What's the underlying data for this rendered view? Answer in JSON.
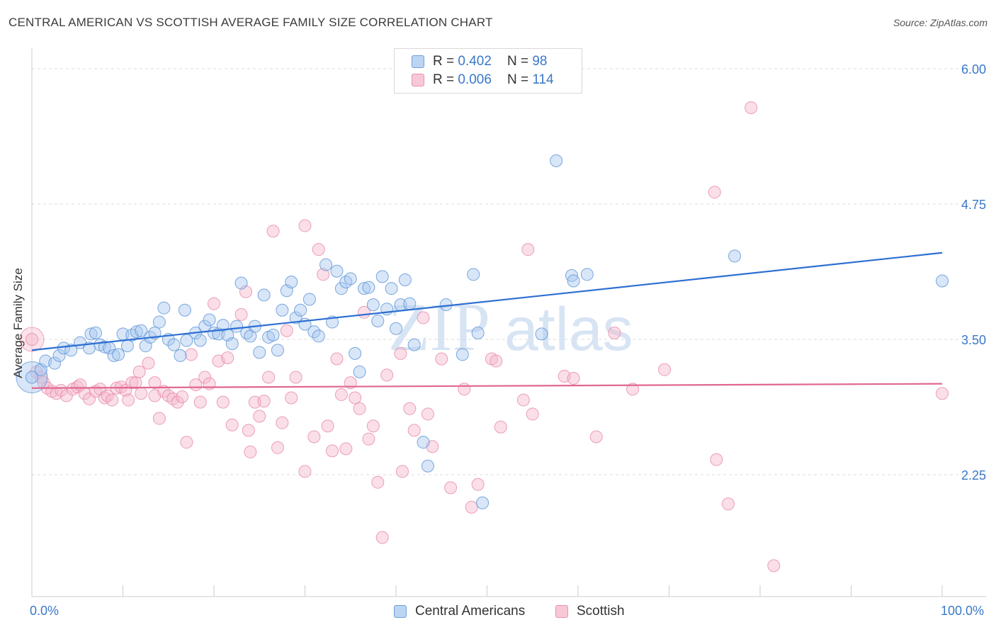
{
  "title": "CENTRAL AMERICAN VS SCOTTISH AVERAGE FAMILY SIZE CORRELATION CHART",
  "source": "Source: ZipAtlas.com",
  "watermark": {
    "zip": "ZIP",
    "atlas": "atlas"
  },
  "legend": {
    "rows": [
      {
        "r_label": "R =",
        "r_value": "0.402",
        "n_label": "N =",
        "n_value": "98"
      },
      {
        "r_label": "R =",
        "r_value": "0.006",
        "n_label": "N =",
        "n_value": "114"
      }
    ]
  },
  "colors": {
    "blue_fill": "#a8c8ef",
    "blue_stroke": "#5b93d6",
    "blue_line": "#2d6fd2",
    "pink_fill": "#f5b8cb",
    "pink_stroke": "#e888a8",
    "pink_line": "#e0688e",
    "grid": "#dddddd",
    "axis_label": "#3a78c9"
  },
  "chart_data": {
    "type": "scatter",
    "title": "CENTRAL AMERICAN VS SCOTTISH AVERAGE FAMILY SIZE CORRELATION CHART",
    "xlabel": "",
    "ylabel": "Average Family Size",
    "xlim": [
      0,
      100
    ],
    "ylim": [
      1.05,
      6.1
    ],
    "x_tick_labels": [
      "0.0%",
      "100.0%"
    ],
    "y_ticks": [
      2.25,
      3.5,
      4.75,
      6.0
    ],
    "y_tick_labels": [
      "2.25",
      "3.50",
      "4.75",
      "6.00"
    ],
    "grid": true,
    "legend_position": "top-center",
    "series": [
      {
        "name": "Central Americans",
        "color": "#a8c8ef",
        "r": 0.402,
        "n": 98,
        "trend": {
          "x": [
            0,
            100
          ],
          "y": [
            3.4,
            4.3
          ]
        },
        "points": [
          [
            0,
            3.15
          ],
          [
            1,
            3.22
          ],
          [
            1.5,
            3.3
          ],
          [
            2.5,
            3.28
          ],
          [
            3,
            3.35
          ],
          [
            3.5,
            3.42
          ],
          [
            4.3,
            3.4
          ],
          [
            5.3,
            3.47
          ],
          [
            6.3,
            3.42
          ],
          [
            6.5,
            3.55
          ],
          [
            7,
            3.56
          ],
          [
            7.5,
            3.45
          ],
          [
            8,
            3.43
          ],
          [
            8.5,
            3.42
          ],
          [
            9,
            3.35
          ],
          [
            9.5,
            3.36
          ],
          [
            10,
            3.55
          ],
          [
            10.5,
            3.44
          ],
          [
            11,
            3.54
          ],
          [
            11.5,
            3.57
          ],
          [
            12,
            3.58
          ],
          [
            12.5,
            3.44
          ],
          [
            13,
            3.52
          ],
          [
            13.5,
            3.56
          ],
          [
            14,
            3.66
          ],
          [
            14.5,
            3.79
          ],
          [
            15,
            3.5
          ],
          [
            15.6,
            3.45
          ],
          [
            16.3,
            3.35
          ],
          [
            16.8,
            3.77
          ],
          [
            17,
            3.49
          ],
          [
            18,
            3.56
          ],
          [
            18.5,
            3.49
          ],
          [
            19,
            3.62
          ],
          [
            19.5,
            3.68
          ],
          [
            20,
            3.56
          ],
          [
            20.5,
            3.55
          ],
          [
            21,
            3.63
          ],
          [
            21.5,
            3.54
          ],
          [
            22,
            3.46
          ],
          [
            22.5,
            3.62
          ],
          [
            23,
            4.02
          ],
          [
            23.6,
            3.56
          ],
          [
            24,
            3.53
          ],
          [
            24.5,
            3.62
          ],
          [
            25,
            3.38
          ],
          [
            25.5,
            3.91
          ],
          [
            26,
            3.52
          ],
          [
            26.5,
            3.54
          ],
          [
            27,
            3.4
          ],
          [
            27.5,
            3.77
          ],
          [
            28,
            3.95
          ],
          [
            28.5,
            4.03
          ],
          [
            29,
            3.7
          ],
          [
            29.5,
            3.77
          ],
          [
            30,
            3.64
          ],
          [
            30.5,
            3.87
          ],
          [
            31,
            3.57
          ],
          [
            31.5,
            3.53
          ],
          [
            32.3,
            4.19
          ],
          [
            33,
            3.66
          ],
          [
            33.5,
            4.13
          ],
          [
            34,
            3.97
          ],
          [
            34.5,
            4.03
          ],
          [
            35,
            4.06
          ],
          [
            35.5,
            3.37
          ],
          [
            36,
            3.2
          ],
          [
            36.5,
            3.97
          ],
          [
            37,
            3.98
          ],
          [
            37.5,
            3.82
          ],
          [
            38,
            3.67
          ],
          [
            38.5,
            4.08
          ],
          [
            39,
            3.78
          ],
          [
            39.5,
            3.97
          ],
          [
            40,
            3.6
          ],
          [
            40.5,
            3.82
          ],
          [
            41,
            4.05
          ],
          [
            41.5,
            3.83
          ],
          [
            42,
            3.45
          ],
          [
            43,
            2.55
          ],
          [
            43.5,
            2.33
          ],
          [
            45.5,
            3.82
          ],
          [
            47.3,
            3.36
          ],
          [
            48.5,
            4.1
          ],
          [
            49,
            3.56
          ],
          [
            49.5,
            1.99
          ],
          [
            56,
            3.55
          ],
          [
            57.6,
            5.15
          ],
          [
            59.3,
            4.09
          ],
          [
            59.5,
            4.04
          ],
          [
            61,
            4.1
          ],
          [
            77.2,
            4.27
          ],
          [
            100,
            4.04
          ]
        ]
      },
      {
        "name": "Scottish",
        "color": "#f5b8cb",
        "r": 0.006,
        "n": 114,
        "trend": {
          "x": [
            0,
            100
          ],
          "y": [
            3.05,
            3.09
          ]
        },
        "points": [
          [
            0,
            3.5
          ],
          [
            0.5,
            3.2
          ],
          [
            1,
            3.15
          ],
          [
            1.3,
            3.1
          ],
          [
            1.7,
            3.05
          ],
          [
            2.2,
            3.02
          ],
          [
            2.7,
            3.0
          ],
          [
            3.2,
            3.03
          ],
          [
            3.8,
            2.98
          ],
          [
            4.5,
            3.04
          ],
          [
            5,
            3.06
          ],
          [
            5.3,
            3.08
          ],
          [
            5.8,
            3.0
          ],
          [
            6.3,
            2.95
          ],
          [
            7,
            3.02
          ],
          [
            7.5,
            3.04
          ],
          [
            8,
            2.96
          ],
          [
            8.3,
            2.98
          ],
          [
            8.8,
            2.94
          ],
          [
            9.3,
            3.05
          ],
          [
            9.8,
            3.06
          ],
          [
            10.3,
            3.03
          ],
          [
            10.6,
            2.94
          ],
          [
            11,
            3.1
          ],
          [
            11.4,
            3.1
          ],
          [
            11.8,
            3.2
          ],
          [
            12,
            3.0
          ],
          [
            12.8,
            3.28
          ],
          [
            13.5,
            2.98
          ],
          [
            13.5,
            3.1
          ],
          [
            14,
            2.77
          ],
          [
            14.5,
            3.02
          ],
          [
            15,
            2.98
          ],
          [
            15.5,
            2.95
          ],
          [
            16,
            2.92
          ],
          [
            16.5,
            2.97
          ],
          [
            17,
            2.55
          ],
          [
            17.5,
            3.36
          ],
          [
            18,
            3.08
          ],
          [
            18.5,
            2.92
          ],
          [
            19,
            3.15
          ],
          [
            19.5,
            3.09
          ],
          [
            20,
            3.83
          ],
          [
            20.5,
            3.3
          ],
          [
            21,
            2.92
          ],
          [
            21.5,
            3.33
          ],
          [
            22,
            2.71
          ],
          [
            23,
            3.73
          ],
          [
            23.5,
            3.94
          ],
          [
            23.8,
            2.66
          ],
          [
            24,
            2.46
          ],
          [
            24.5,
            2.92
          ],
          [
            25,
            2.79
          ],
          [
            25.5,
            2.93
          ],
          [
            26,
            3.15
          ],
          [
            26.5,
            4.5
          ],
          [
            27,
            2.5
          ],
          [
            27.5,
            2.73
          ],
          [
            28,
            3.58
          ],
          [
            28.5,
            2.96
          ],
          [
            29,
            3.15
          ],
          [
            30,
            2.28
          ],
          [
            30,
            4.55
          ],
          [
            31,
            2.6
          ],
          [
            31.5,
            4.33
          ],
          [
            32,
            4.1
          ],
          [
            32.5,
            2.7
          ],
          [
            33,
            2.47
          ],
          [
            33.5,
            3.32
          ],
          [
            34,
            2.99
          ],
          [
            34.5,
            2.49
          ],
          [
            35,
            3.1
          ],
          [
            35.5,
            2.96
          ],
          [
            36,
            2.86
          ],
          [
            36.5,
            3.75
          ],
          [
            37,
            2.58
          ],
          [
            37.5,
            2.7
          ],
          [
            38,
            2.18
          ],
          [
            38.5,
            1.67
          ],
          [
            39,
            3.17
          ],
          [
            40.5,
            3.37
          ],
          [
            40.7,
            2.28
          ],
          [
            41.5,
            2.86
          ],
          [
            42,
            2.66
          ],
          [
            43,
            3.7
          ],
          [
            43.5,
            2.81
          ],
          [
            44,
            2.51
          ],
          [
            45,
            3.32
          ],
          [
            46,
            2.13
          ],
          [
            47.5,
            3.04
          ],
          [
            48.3,
            1.95
          ],
          [
            49,
            2.16
          ],
          [
            50.5,
            3.32
          ],
          [
            51,
            3.3
          ],
          [
            51.5,
            2.69
          ],
          [
            54,
            2.94
          ],
          [
            54.5,
            4.33
          ],
          [
            55,
            2.81
          ],
          [
            58.5,
            3.16
          ],
          [
            59.5,
            3.14
          ],
          [
            62,
            2.6
          ],
          [
            64,
            3.56
          ],
          [
            66,
            3.04
          ],
          [
            69.5,
            3.22
          ],
          [
            75,
            4.86
          ],
          [
            75.2,
            2.39
          ],
          [
            76.5,
            1.98
          ],
          [
            79,
            5.64
          ],
          [
            81.5,
            1.41
          ],
          [
            100,
            3.0
          ]
        ]
      }
    ]
  }
}
